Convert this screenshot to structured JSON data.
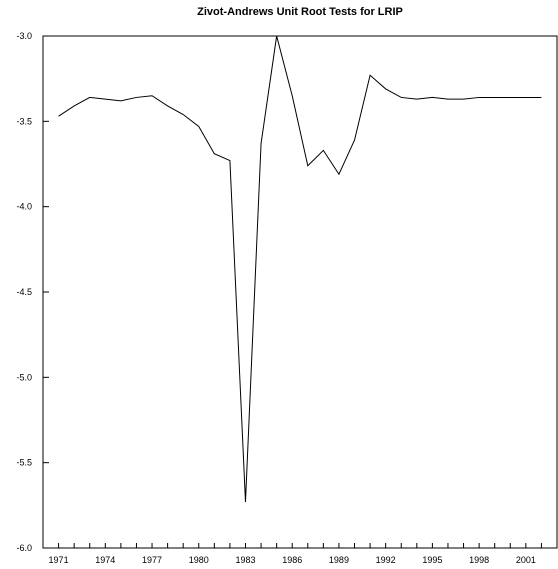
{
  "chart_data": {
    "type": "line",
    "title": "Zivot-Andrews Unit Root Tests for LRIP",
    "xlabel": "",
    "ylabel": "",
    "ylim": [
      -6.0,
      -3.0
    ],
    "xlim": [
      1970,
      2003
    ],
    "grid": false,
    "y_ticks": [
      -3.0,
      -3.5,
      -4.0,
      -4.5,
      -5.0,
      -5.5,
      -6.0
    ],
    "y_tick_labels": [
      "-3.0",
      "-3.5",
      "-4.0",
      "-4.5",
      "-5.0",
      "-5.5",
      "-6.0"
    ],
    "x_tick_labels": [
      "1971",
      "1974",
      "1977",
      "1980",
      "1983",
      "1986",
      "1989",
      "1992",
      "1995",
      "1998",
      "2001"
    ],
    "line_color": "#000000",
    "series": [
      {
        "x": [
          1971,
          1972,
          1973,
          1974,
          1975,
          1976,
          1977,
          1978,
          1979,
          1980,
          1981,
          1982,
          1983,
          1984,
          1985,
          1986,
          1987,
          1988,
          1989,
          1990,
          1991,
          1992,
          1993,
          1994,
          1995,
          1996,
          1997,
          1998,
          1999,
          2000,
          2001,
          2002
        ],
        "values": [
          -3.47,
          -3.41,
          -3.36,
          -3.37,
          -3.38,
          -3.36,
          -3.35,
          -3.41,
          -3.46,
          -3.53,
          -3.69,
          -3.73,
          -5.73,
          -3.63,
          -3.0,
          -3.35,
          -3.76,
          -3.67,
          -3.81,
          -3.61,
          -3.23,
          -3.31,
          -3.36,
          -3.37,
          -3.36,
          -3.37,
          -3.37,
          -3.36,
          -3.36,
          -3.36,
          -3.36,
          -3.36
        ]
      }
    ]
  }
}
